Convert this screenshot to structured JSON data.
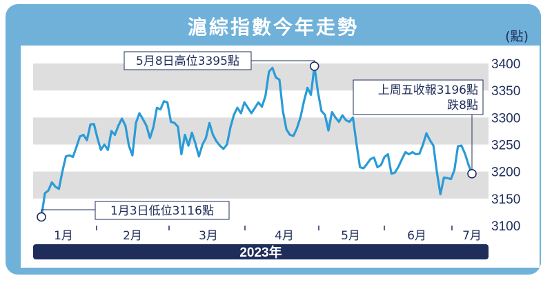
{
  "chart_data": {
    "type": "line",
    "title": "滬綜指數今年走勢",
    "unit": "(點)",
    "year_label": "2023年",
    "x_labels": [
      "1月",
      "2月",
      "3月",
      "4月",
      "5月",
      "6月",
      "7月"
    ],
    "y_ticks": [
      "3400",
      "3350",
      "3300",
      "3250",
      "3200",
      "3150",
      "3100"
    ],
    "ylim": [
      3100,
      3400
    ],
    "grid": "horizontal bands",
    "colors": {
      "line": "#2a9bd6",
      "band": "#dedede",
      "bar": "#1e2d5a",
      "frame": "#6fb1d9"
    },
    "annotations": {
      "low": "1月3日低位3116點",
      "high": "5月8日高位3395點",
      "last_1": "上周五收報3196點",
      "last_2": "跌8點"
    },
    "series": [
      {
        "values": [
          3116,
          3160,
          3165,
          3180,
          3172,
          3168,
          3200,
          3228,
          3230,
          3227,
          3245,
          3265,
          3268,
          3258,
          3287,
          3288,
          3262,
          3240,
          3250,
          3240,
          3275,
          3268,
          3285,
          3298,
          3285,
          3248,
          3230,
          3290,
          3308,
          3297,
          3285,
          3262,
          3282,
          3318,
          3315,
          3330,
          3328,
          3292,
          3290,
          3283,
          3232,
          3268,
          3248,
          3272,
          3252,
          3228,
          3250,
          3262,
          3290,
          3268,
          3256,
          3248,
          3242,
          3250,
          3282,
          3305,
          3318,
          3308,
          3328,
          3318,
          3308,
          3318,
          3328,
          3320,
          3340,
          3385,
          3392,
          3374,
          3370,
          3312,
          3278,
          3268,
          3266,
          3280,
          3300,
          3330,
          3355,
          3342,
          3395,
          3347,
          3312,
          3305,
          3276,
          3310,
          3300,
          3292,
          3304,
          3295,
          3292,
          3300,
          3252,
          3208,
          3206,
          3214,
          3223,
          3226,
          3208,
          3212,
          3227,
          3232,
          3196,
          3198,
          3209,
          3223,
          3236,
          3232,
          3236,
          3232,
          3233,
          3250,
          3271,
          3258,
          3248,
          3198,
          3158,
          3189,
          3188,
          3186,
          3203,
          3247,
          3248,
          3233,
          3213,
          3196
        ]
      }
    ]
  }
}
